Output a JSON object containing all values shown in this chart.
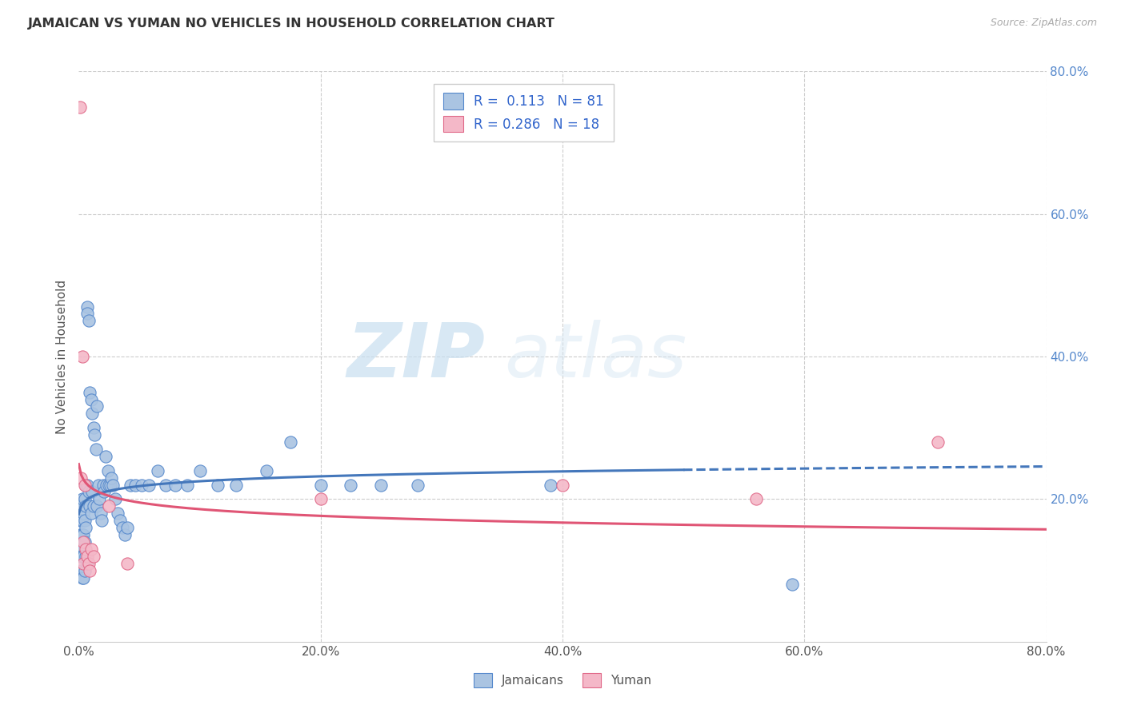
{
  "title": "JAMAICAN VS YUMAN NO VEHICLES IN HOUSEHOLD CORRELATION CHART",
  "source": "Source: ZipAtlas.com",
  "ylabel": "No Vehicles in Household",
  "xlim": [
    0.0,
    0.8
  ],
  "ylim": [
    0.0,
    0.8
  ],
  "xtick_labels": [
    "0.0%",
    "20.0%",
    "40.0%",
    "60.0%",
    "80.0%"
  ],
  "xtick_vals": [
    0.0,
    0.2,
    0.4,
    0.6,
    0.8
  ],
  "ytick_labels": [
    "20.0%",
    "40.0%",
    "60.0%",
    "80.0%"
  ],
  "ytick_vals": [
    0.2,
    0.4,
    0.6,
    0.8
  ],
  "jamaican_color": "#aac4e2",
  "jamaican_edge": "#5588cc",
  "yuman_color": "#f4b8c8",
  "yuman_edge": "#e06888",
  "trend_jamaican_color": "#4477bb",
  "trend_yuman_color": "#e05575",
  "legend_R_jamaican": "0.113",
  "legend_N_jamaican": "81",
  "legend_R_yuman": "0.286",
  "legend_N_yuman": "18",
  "watermark_zip": "ZIP",
  "watermark_atlas": "atlas",
  "jamaican_x": [
    0.001,
    0.001,
    0.001,
    0.002,
    0.002,
    0.002,
    0.002,
    0.002,
    0.003,
    0.003,
    0.003,
    0.003,
    0.003,
    0.004,
    0.004,
    0.004,
    0.004,
    0.005,
    0.005,
    0.005,
    0.005,
    0.006,
    0.006,
    0.006,
    0.006,
    0.007,
    0.007,
    0.007,
    0.007,
    0.008,
    0.008,
    0.009,
    0.009,
    0.01,
    0.01,
    0.011,
    0.011,
    0.012,
    0.012,
    0.013,
    0.014,
    0.015,
    0.015,
    0.016,
    0.017,
    0.018,
    0.019,
    0.02,
    0.021,
    0.022,
    0.023,
    0.024,
    0.025,
    0.026,
    0.027,
    0.028,
    0.03,
    0.032,
    0.034,
    0.036,
    0.038,
    0.04,
    0.043,
    0.047,
    0.052,
    0.058,
    0.065,
    0.072,
    0.08,
    0.09,
    0.1,
    0.115,
    0.13,
    0.155,
    0.175,
    0.2,
    0.225,
    0.25,
    0.28,
    0.39,
    0.59
  ],
  "jamaican_y": [
    0.17,
    0.15,
    0.13,
    0.19,
    0.17,
    0.15,
    0.12,
    0.1,
    0.2,
    0.17,
    0.15,
    0.12,
    0.09,
    0.18,
    0.15,
    0.12,
    0.09,
    0.2,
    0.17,
    0.14,
    0.1,
    0.22,
    0.19,
    0.16,
    0.12,
    0.47,
    0.46,
    0.22,
    0.11,
    0.45,
    0.21,
    0.35,
    0.19,
    0.34,
    0.18,
    0.32,
    0.21,
    0.3,
    0.19,
    0.29,
    0.27,
    0.33,
    0.19,
    0.22,
    0.2,
    0.18,
    0.17,
    0.22,
    0.21,
    0.26,
    0.22,
    0.24,
    0.22,
    0.22,
    0.23,
    0.22,
    0.2,
    0.18,
    0.17,
    0.16,
    0.15,
    0.16,
    0.22,
    0.22,
    0.22,
    0.22,
    0.24,
    0.22,
    0.22,
    0.22,
    0.24,
    0.22,
    0.22,
    0.24,
    0.28,
    0.22,
    0.22,
    0.22,
    0.22,
    0.22,
    0.08
  ],
  "yuman_x": [
    0.001,
    0.002,
    0.003,
    0.004,
    0.004,
    0.005,
    0.006,
    0.007,
    0.008,
    0.009,
    0.01,
    0.012,
    0.025,
    0.04,
    0.2,
    0.4,
    0.56,
    0.71
  ],
  "yuman_y": [
    0.75,
    0.23,
    0.4,
    0.14,
    0.11,
    0.22,
    0.13,
    0.12,
    0.11,
    0.1,
    0.13,
    0.12,
    0.19,
    0.11,
    0.2,
    0.22,
    0.2,
    0.28
  ]
}
